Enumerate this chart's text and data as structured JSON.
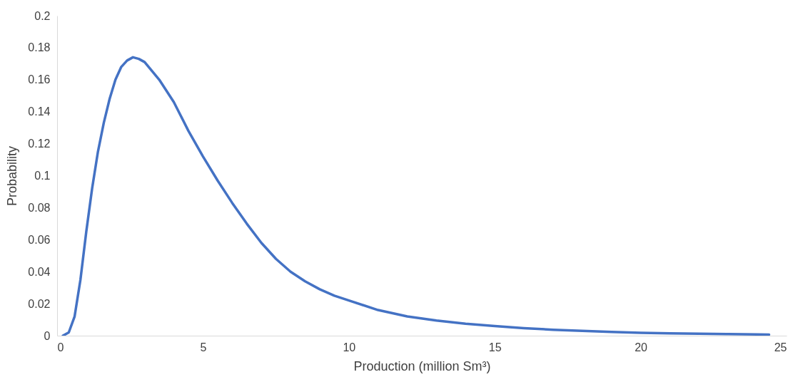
{
  "chart_data": {
    "type": "line",
    "xlabel": "Production (million Sm³)",
    "ylabel": "Probability",
    "xlim": [
      0,
      25
    ],
    "xticks": [
      0,
      5,
      10,
      15,
      20,
      25
    ],
    "ylim": [
      0,
      0.2
    ],
    "yticks": [
      0,
      0.02,
      0.04,
      0.06,
      0.08,
      0.1,
      0.12,
      0.14,
      0.16,
      0.18,
      0.2
    ],
    "grid": false,
    "marker": "none",
    "line_style": "solid",
    "x": [
      0.2,
      0.4,
      0.6,
      0.8,
      1.0,
      1.2,
      1.4,
      1.6,
      1.8,
      2.0,
      2.2,
      2.4,
      2.6,
      2.8,
      3.0,
      3.5,
      4.0,
      4.5,
      5.0,
      5.5,
      6.0,
      6.5,
      7.0,
      7.5,
      8.0,
      8.5,
      9.0,
      9.5,
      10,
      11,
      12,
      13,
      14,
      15,
      16,
      17,
      18,
      19,
      20,
      21,
      22,
      23,
      24,
      24.4
    ],
    "series": [
      {
        "color": "#4472c4",
        "values": [
          0,
          0.002,
          0.012,
          0.035,
          0.065,
          0.092,
          0.115,
          0.133,
          0.148,
          0.16,
          0.168,
          0.172,
          0.174,
          0.173,
          0.171,
          0.16,
          0.146,
          0.128,
          0.112,
          0.097,
          0.083,
          0.07,
          0.058,
          0.048,
          0.04,
          0.034,
          0.029,
          0.025,
          0.022,
          0.016,
          0.012,
          0.0095,
          0.0075,
          0.006,
          0.0047,
          0.0037,
          0.003,
          0.0023,
          0.0018,
          0.0015,
          0.0012,
          0.001,
          0.0008,
          0.0007
        ]
      }
    ]
  }
}
